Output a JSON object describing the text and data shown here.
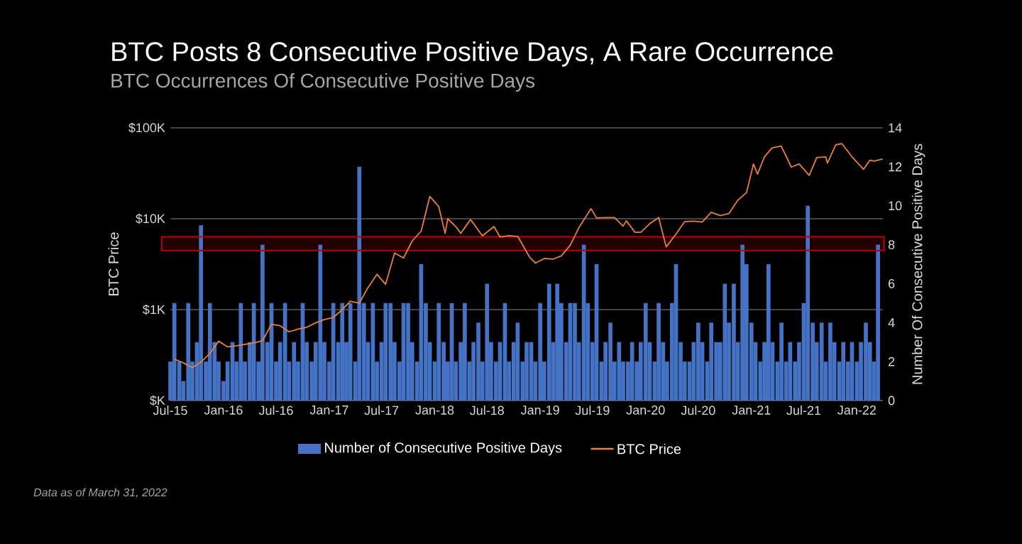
{
  "chart_data": {
    "type": "bar",
    "title": "BTC Posts 8 Consecutive Positive Days, A Rare Occurrence",
    "subtitle": "BTC Occurrences Of Consecutive Positive Days",
    "ylabel": "BTC Price",
    "y2label": "Number Of Consecutive Positive Days",
    "annotations": [
      "Data as of March  31, 2022"
    ],
    "xlim": [
      "2015-07-01",
      "2022-04-01"
    ],
    "xticks": [
      {
        "value": "2015-07-01",
        "label": "Jul-15"
      },
      {
        "value": "2016-01-01",
        "label": "Jan-16"
      },
      {
        "value": "2016-07-01",
        "label": "Jul-16"
      },
      {
        "value": "2017-01-01",
        "label": "Jan-17"
      },
      {
        "value": "2017-07-01",
        "label": "Jul-17"
      },
      {
        "value": "2018-01-01",
        "label": "Jan-18"
      },
      {
        "value": "2018-07-01",
        "label": "Jul-18"
      },
      {
        "value": "2019-01-01",
        "label": "Jan-19"
      },
      {
        "value": "2019-07-01",
        "label": "Jul-19"
      },
      {
        "value": "2020-01-01",
        "label": "Jan-20"
      },
      {
        "value": "2020-07-01",
        "label": "Jul-20"
      },
      {
        "value": "2021-01-01",
        "label": "Jan-21"
      },
      {
        "value": "2021-07-01",
        "label": "Jul-21"
      },
      {
        "value": "2022-01-01",
        "label": "Jan-22"
      }
    ],
    "ylim": [
      100,
      100000
    ],
    "yticks": [
      {
        "value": 100,
        "label": "$K"
      },
      {
        "value": 1000,
        "label": "$1K"
      },
      {
        "value": 10000,
        "label": "$10K"
      },
      {
        "value": 100000,
        "label": "$100K"
      }
    ],
    "log": "y",
    "y2lim": [
      0,
      14
    ],
    "y2ticks": [
      0,
      2,
      4,
      6,
      8,
      10,
      12,
      14
    ],
    "grid": "y",
    "legend": "bottom",
    "bands": [
      {
        "axis": "y2",
        "from": 7.7,
        "to": 8.4
      }
    ],
    "series": [
      {
        "name": "Number of Consecutive Positive Days",
        "axis": "y2",
        "color": "#4472c4",
        "x": [
          "2015-07-01",
          "2015-07-15",
          "2015-08-01",
          "2015-08-15",
          "2015-09-01",
          "2015-09-15",
          "2015-10-01",
          "2015-10-15",
          "2015-11-01",
          "2015-11-15",
          "2015-12-01",
          "2015-12-15",
          "2016-01-01",
          "2016-01-15",
          "2016-02-01",
          "2016-02-15",
          "2016-03-01",
          "2016-03-15",
          "2016-04-01",
          "2016-04-15",
          "2016-05-01",
          "2016-05-15",
          "2016-06-01",
          "2016-06-15",
          "2016-07-01",
          "2016-07-15",
          "2016-08-01",
          "2016-08-15",
          "2016-09-01",
          "2016-09-15",
          "2016-10-01",
          "2016-10-15",
          "2016-11-01",
          "2016-11-15",
          "2016-12-01",
          "2016-12-15",
          "2017-01-01",
          "2017-01-15",
          "2017-02-01",
          "2017-02-15",
          "2017-03-01",
          "2017-03-15",
          "2017-04-01",
          "2017-04-15",
          "2017-05-01",
          "2017-05-15",
          "2017-06-01",
          "2017-06-15",
          "2017-07-01",
          "2017-07-15",
          "2017-08-01",
          "2017-08-15",
          "2017-09-01",
          "2017-09-15",
          "2017-10-01",
          "2017-10-15",
          "2017-11-01",
          "2017-11-15",
          "2017-12-01",
          "2017-12-15",
          "2018-01-01",
          "2018-01-15",
          "2018-02-01",
          "2018-02-15",
          "2018-03-01",
          "2018-03-15",
          "2018-04-01",
          "2018-04-15",
          "2018-05-01",
          "2018-05-15",
          "2018-06-01",
          "2018-06-15",
          "2018-07-01",
          "2018-07-15",
          "2018-08-01",
          "2018-08-15",
          "2018-09-01",
          "2018-09-15",
          "2018-10-01",
          "2018-10-15",
          "2018-11-01",
          "2018-11-15",
          "2018-12-01",
          "2018-12-15",
          "2019-01-01",
          "2019-01-15",
          "2019-02-01",
          "2019-02-15",
          "2019-03-01",
          "2019-03-15",
          "2019-04-01",
          "2019-04-15",
          "2019-05-01",
          "2019-05-15",
          "2019-06-01",
          "2019-06-15",
          "2019-07-01",
          "2019-07-15",
          "2019-08-01",
          "2019-08-15",
          "2019-09-01",
          "2019-09-15",
          "2019-10-01",
          "2019-10-15",
          "2019-11-01",
          "2019-11-15",
          "2019-12-01",
          "2019-12-15",
          "2020-01-01",
          "2020-01-15",
          "2020-02-01",
          "2020-02-15",
          "2020-03-01",
          "2020-03-15",
          "2020-04-01",
          "2020-04-15",
          "2020-05-01",
          "2020-05-15",
          "2020-06-01",
          "2020-06-15",
          "2020-07-01",
          "2020-07-15",
          "2020-08-01",
          "2020-08-15",
          "2020-09-01",
          "2020-09-15",
          "2020-10-01",
          "2020-10-15",
          "2020-11-01",
          "2020-11-15",
          "2020-12-01",
          "2020-12-15",
          "2021-01-01",
          "2021-01-15",
          "2021-02-01",
          "2021-02-15",
          "2021-03-01",
          "2021-03-15",
          "2021-04-01",
          "2021-04-15",
          "2021-05-01",
          "2021-05-15",
          "2021-06-01",
          "2021-06-15",
          "2021-07-01",
          "2021-07-15",
          "2021-08-01",
          "2021-08-15",
          "2021-09-01",
          "2021-09-15",
          "2021-10-01",
          "2021-10-15",
          "2021-11-01",
          "2021-11-15",
          "2021-12-01",
          "2021-12-15",
          "2022-01-01",
          "2022-01-15",
          "2022-02-01",
          "2022-02-15",
          "2022-03-01",
          "2022-03-15"
        ],
        "values": [
          2,
          5,
          2,
          1,
          5,
          2,
          3,
          9,
          2,
          5,
          3,
          2,
          1,
          2,
          3,
          2,
          5,
          2,
          3,
          5,
          2,
          8,
          3,
          5,
          2,
          3,
          5,
          2,
          3,
          2,
          5,
          3,
          2,
          3,
          8,
          3,
          2,
          5,
          3,
          5,
          3,
          5,
          2,
          12,
          5,
          3,
          5,
          2,
          3,
          5,
          5,
          3,
          2,
          5,
          5,
          3,
          2,
          7,
          5,
          3,
          2,
          5,
          3,
          2,
          5,
          2,
          3,
          5,
          2,
          3,
          4,
          2,
          6,
          3,
          2,
          3,
          5,
          2,
          3,
          4,
          2,
          3,
          3,
          2,
          5,
          2,
          6,
          3,
          6,
          5,
          3,
          5,
          5,
          3,
          8,
          5,
          3,
          7,
          2,
          3,
          4,
          2,
          3,
          2,
          2,
          3,
          2,
          3,
          5,
          3,
          2,
          5,
          3,
          2,
          5,
          7,
          3,
          2,
          2,
          3,
          4,
          3,
          2,
          4,
          3,
          3,
          6,
          4,
          6,
          3,
          8,
          7,
          4,
          3,
          2,
          3,
          7,
          3,
          2,
          4,
          2,
          3,
          2,
          3,
          5,
          10,
          4,
          3,
          4,
          2,
          4,
          3,
          2,
          3,
          2,
          3,
          2,
          3,
          4,
          3,
          2,
          8
        ]
      },
      {
        "name": "BTC Price",
        "type": "line",
        "color": "#ed7d31",
        "x": [
          "2015-07-15",
          "2015-08-15",
          "2015-09-15",
          "2015-10-15",
          "2015-11-15",
          "2015-12-15",
          "2016-01-15",
          "2016-02-15",
          "2016-03-15",
          "2016-04-15",
          "2016-05-15",
          "2016-06-15",
          "2016-07-15",
          "2016-08-15",
          "2016-09-15",
          "2016-10-15",
          "2016-11-15",
          "2016-12-15",
          "2017-01-15",
          "2017-02-15",
          "2017-03-15",
          "2017-04-15",
          "2017-05-15",
          "2017-06-15",
          "2017-07-15",
          "2017-08-15",
          "2017-09-15",
          "2017-10-15",
          "2017-11-15",
          "2017-12-15",
          "2018-01-15",
          "2018-02-06",
          "2018-02-15",
          "2018-03-15",
          "2018-04-01",
          "2018-05-05",
          "2018-06-15",
          "2018-07-25",
          "2018-08-15",
          "2018-09-15",
          "2018-10-15",
          "2018-11-25",
          "2018-12-15",
          "2019-01-15",
          "2019-02-15",
          "2019-03-15",
          "2019-04-15",
          "2019-05-15",
          "2019-06-26",
          "2019-07-15",
          "2019-08-15",
          "2019-09-15",
          "2019-10-15",
          "2019-10-26",
          "2019-11-25",
          "2019-12-15",
          "2020-01-15",
          "2020-02-15",
          "2020-03-12",
          "2020-04-15",
          "2020-05-15",
          "2020-06-15",
          "2020-07-15",
          "2020-08-15",
          "2020-09-15",
          "2020-10-15",
          "2020-11-15",
          "2020-12-15",
          "2021-01-08",
          "2021-01-22",
          "2021-02-15",
          "2021-03-13",
          "2021-04-14",
          "2021-05-19",
          "2021-06-15",
          "2021-07-20",
          "2021-08-15",
          "2021-09-15",
          "2021-09-21",
          "2021-10-20",
          "2021-11-10",
          "2021-12-15",
          "2022-01-24",
          "2022-02-15",
          "2022-03-01",
          "2022-03-31"
        ],
        "values": [
          285,
          260,
          230,
          265,
          330,
          450,
          390,
          400,
          415,
          430,
          455,
          690,
          665,
          570,
          610,
          640,
          715,
          780,
          820,
          1000,
          1240,
          1180,
          1750,
          2450,
          1900,
          4200,
          3700,
          5700,
          7300,
          17600,
          13600,
          6900,
          10000,
          8200,
          6900,
          9800,
          6500,
          8200,
          6300,
          6500,
          6400,
          3800,
          3250,
          3650,
          3600,
          3900,
          5100,
          8000,
          12900,
          10200,
          10300,
          10300,
          8300,
          9500,
          7100,
          7100,
          8800,
          10300,
          4900,
          6800,
          9300,
          9400,
          9200,
          11800,
          10800,
          11400,
          16000,
          19400,
          40000,
          31000,
          48000,
          60000,
          63000,
          37000,
          40000,
          30000,
          47000,
          48000,
          41000,
          65000,
          67000,
          48000,
          35000,
          44000,
          43000,
          45500
        ]
      }
    ]
  }
}
